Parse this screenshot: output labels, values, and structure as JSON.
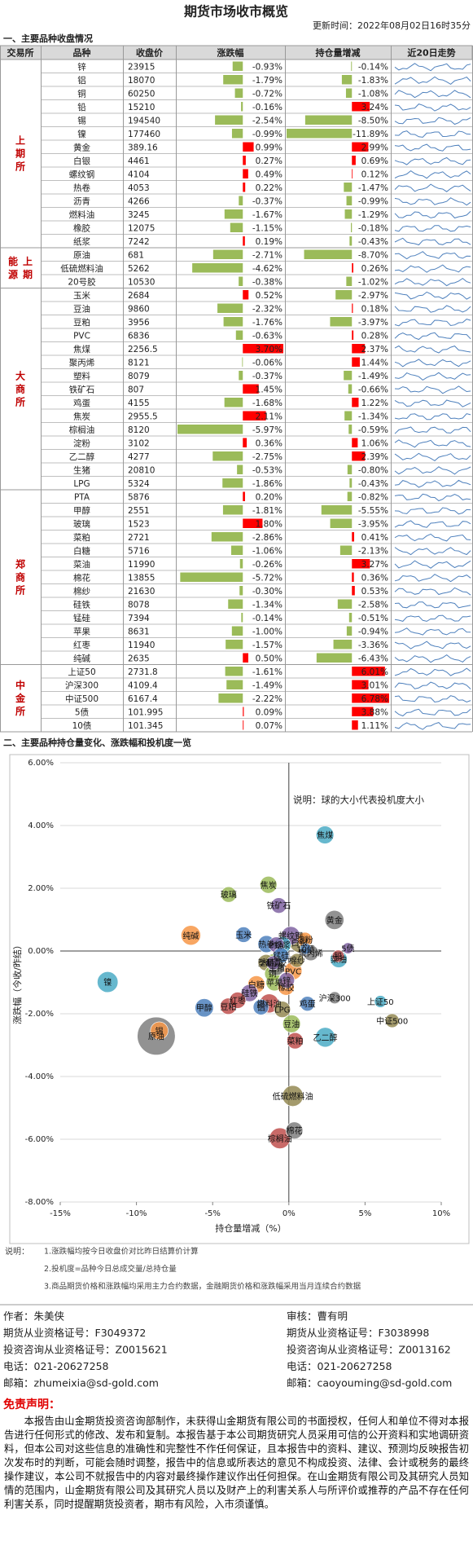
{
  "header": {
    "title": "期货市场收市概览",
    "updated": "更新时间：2022年08月02日16时35分"
  },
  "section1": "一、主要品种收盘情况",
  "table": {
    "columns": [
      "交易所",
      "品种",
      "收盘价",
      "涨跌幅",
      "持仓量增减",
      "近20日走势"
    ],
    "up_color": "#ff0000",
    "down_color": "#9bbb59",
    "groups": [
      {
        "exchange": "上期所",
        "rows": [
          [
            "锌",
            23915,
            -0.93,
            "-0.93%",
            -0.14,
            "-0.14%"
          ],
          [
            "铝",
            18070,
            -1.79,
            "-1.79%",
            -1.83,
            "-1.83%"
          ],
          [
            "铜",
            60250,
            -0.72,
            "-0.72%",
            -1.08,
            "-1.08%"
          ],
          [
            "铅",
            15210,
            -0.16,
            "-0.16%",
            3.24,
            "3.24%"
          ],
          [
            "锡",
            194540,
            -2.54,
            "-2.54%",
            -8.5,
            "-8.50%"
          ],
          [
            "镍",
            177460,
            -0.99,
            "-0.99%",
            -11.89,
            "-11.89%"
          ],
          [
            "黄金",
            389.16,
            0.99,
            "0.99%",
            2.99,
            "2.99%"
          ],
          [
            "白银",
            4461,
            0.27,
            "0.27%",
            0.69,
            "0.69%"
          ],
          [
            "螺纹钢",
            4104,
            0.49,
            "0.49%",
            0.12,
            "0.12%"
          ],
          [
            "热卷",
            4053,
            0.22,
            "0.22%",
            -1.47,
            "-1.47%"
          ],
          [
            "沥青",
            4266,
            -0.37,
            "-0.37%",
            -0.99,
            "-0.99%"
          ],
          [
            "燃料油",
            3245,
            -1.67,
            "-1.67%",
            -1.29,
            "-1.29%"
          ],
          [
            "橡胶",
            12075,
            -1.15,
            "-1.15%",
            -0.18,
            "-0.18%"
          ],
          [
            "纸浆",
            7242,
            0.19,
            "0.19%",
            -0.43,
            "-0.43%"
          ]
        ]
      },
      {
        "exchange": "上期能源",
        "rows": [
          [
            "原油",
            681,
            -2.71,
            "-2.71%",
            -8.7,
            "-8.70%"
          ],
          [
            "低硫燃料油",
            5262,
            -4.62,
            "-4.62%",
            0.26,
            "0.26%"
          ],
          [
            "20号胶",
            10530,
            -0.38,
            "-0.38%",
            -1.02,
            "-1.02%"
          ]
        ]
      },
      {
        "exchange": "大商所",
        "rows": [
          [
            "玉米",
            2684,
            0.52,
            "0.52%",
            -2.97,
            "-2.97%"
          ],
          [
            "豆油",
            9860,
            -2.32,
            "-2.32%",
            0.18,
            "0.18%"
          ],
          [
            "豆粕",
            3956,
            -1.76,
            "-1.76%",
            -3.97,
            "-3.97%"
          ],
          [
            "PVC",
            6836,
            -0.63,
            "-0.63%",
            0.28,
            "0.28%"
          ],
          [
            "焦煤",
            2256.5,
            3.7,
            "3.70%",
            2.37,
            "2.37%"
          ],
          [
            "聚丙烯",
            8121,
            -0.06,
            "-0.06%",
            1.44,
            "1.44%"
          ],
          [
            "塑料",
            8079,
            -0.37,
            "-0.37%",
            -1.49,
            "-1.49%"
          ],
          [
            "铁矿石",
            807,
            1.45,
            "1.45%",
            -0.66,
            "-0.66%"
          ],
          [
            "鸡蛋",
            4155,
            -1.68,
            "-1.68%",
            1.22,
            "1.22%"
          ],
          [
            "焦炭",
            2955.5,
            2.11,
            "2.11%",
            -1.34,
            "-1.34%"
          ],
          [
            "棕榈油",
            8120,
            -5.97,
            "-5.97%",
            -0.59,
            "-0.59%"
          ],
          [
            "淀粉",
            3102,
            0.36,
            "0.36%",
            1.06,
            "1.06%"
          ],
          [
            "乙二醇",
            4277,
            -2.75,
            "-2.75%",
            2.39,
            "2.39%"
          ],
          [
            "生猪",
            20810,
            -0.53,
            "-0.53%",
            -0.8,
            "-0.80%"
          ],
          [
            "LPG",
            5324,
            -1.86,
            "-1.86%",
            -0.43,
            "-0.43%"
          ]
        ]
      },
      {
        "exchange": "郑商所",
        "rows": [
          [
            "PTA",
            5876,
            0.2,
            "0.20%",
            -0.82,
            "-0.82%"
          ],
          [
            "甲醇",
            2551,
            -1.81,
            "-1.81%",
            -5.55,
            "-5.55%"
          ],
          [
            "玻璃",
            1523,
            1.8,
            "1.80%",
            -3.95,
            "-3.95%"
          ],
          [
            "菜粕",
            2721,
            -2.86,
            "-2.86%",
            0.41,
            "0.41%"
          ],
          [
            "白糖",
            5716,
            -1.06,
            "-1.06%",
            -2.13,
            "-2.13%"
          ],
          [
            "菜油",
            11990,
            -0.26,
            "-0.26%",
            3.27,
            "3.27%"
          ],
          [
            "棉花",
            13855,
            -5.72,
            "-5.72%",
            0.36,
            "0.36%"
          ],
          [
            "棉纱",
            21630,
            -0.3,
            "-0.30%",
            0.53,
            "0.53%"
          ],
          [
            "硅铁",
            8078,
            -1.34,
            "-1.34%",
            -2.58,
            "-2.58%"
          ],
          [
            "锰硅",
            7394,
            -0.14,
            "-0.14%",
            -0.51,
            "-0.51%"
          ],
          [
            "苹果",
            8631,
            -1.0,
            "-1.00%",
            -0.94,
            "-0.94%"
          ],
          [
            "红枣",
            11940,
            -1.57,
            "-1.57%",
            -3.36,
            "-3.36%"
          ],
          [
            "纯碱",
            2635,
            0.5,
            "0.50%",
            -6.43,
            "-6.43%"
          ]
        ]
      },
      {
        "exchange": "中金所",
        "rows": [
          [
            "上证50",
            2731.8,
            -1.61,
            "-1.61%",
            6.01,
            "6.01%"
          ],
          [
            "沪深300",
            4109.4,
            -1.49,
            "-1.49%",
            3.01,
            "3.01%"
          ],
          [
            "中证500",
            6167.4,
            -2.22,
            "-2.22%",
            6.78,
            "6.78%"
          ],
          [
            "5债",
            101.995,
            0.09,
            "0.09%",
            3.88,
            "3.88%"
          ],
          [
            "10债",
            101.345,
            0.07,
            "0.07%",
            1.11,
            "1.11%"
          ]
        ]
      }
    ]
  },
  "section2": "二、主要品种持仓量变化、涨跌幅和投机度一览",
  "chart_data": {
    "type": "scatter",
    "note": "说明：球的大小代表投机度大小",
    "x_label": "持仓量增减（%）",
    "y_label": "涨跌幅（今收/昨结）",
    "xlim": [
      -15,
      10
    ],
    "ylim": [
      -8,
      6
    ],
    "xticks": [
      {
        "value": -15,
        "label": "-15%"
      },
      {
        "value": -10,
        "label": "-10%"
      },
      {
        "value": -5,
        "label": "-5%"
      },
      {
        "value": 0,
        "label": "0%"
      },
      {
        "value": 5,
        "label": "5%"
      },
      {
        "value": 10,
        "label": "10%"
      }
    ],
    "yticks": [
      {
        "value": -8,
        "label": "-8.00%"
      },
      {
        "value": -6,
        "label": "-6.00%"
      },
      {
        "value": -4,
        "label": "-4.00%"
      },
      {
        "value": -2,
        "label": "-2.00%"
      },
      {
        "value": 0,
        "label": "0.00%"
      },
      {
        "value": 2,
        "label": "2.00%"
      },
      {
        "value": 4,
        "label": "4.00%"
      },
      {
        "value": 6,
        "label": "6.00%"
      }
    ],
    "colors": [
      "#8064a2",
      "#4f81bd",
      "#9bbb59",
      "#c0504d",
      "#f79646",
      "#4bacc6",
      "#7f7f7f",
      "#948a54"
    ],
    "names": [
      "锌",
      "铝",
      "铜",
      "铅",
      "锡",
      "镍",
      "黄金",
      "白银",
      "螺纹钢",
      "热卷",
      "沥青",
      "燃料油",
      "橡胶",
      "纸浆",
      "原油",
      "低硫燃料油",
      "20号胶",
      "玉米",
      "豆油",
      "豆粕",
      "PVC",
      "焦煤",
      "聚丙烯",
      "塑料",
      "铁矿石",
      "鸡蛋",
      "焦炭",
      "棕榈油",
      "淀粉",
      "乙二醇",
      "生猪",
      "LPG",
      "PTA",
      "甲醇",
      "玻璃",
      "菜粕",
      "白糖",
      "菜油",
      "棉花",
      "棉纱",
      "硅铁",
      "锰硅",
      "苹果",
      "红枣",
      "纯碱",
      "上证50",
      "沪深300",
      "中证500",
      "5债",
      "10债"
    ],
    "x": [
      -0.14,
      -1.83,
      -1.08,
      3.24,
      -8.5,
      -11.89,
      2.99,
      0.69,
      0.12,
      -1.47,
      -0.99,
      -1.29,
      -0.18,
      -0.43,
      -8.7,
      0.26,
      -1.02,
      -2.97,
      0.18,
      -3.97,
      0.28,
      2.37,
      1.44,
      -1.49,
      -0.66,
      1.22,
      -1.34,
      -0.59,
      1.06,
      2.39,
      -0.8,
      -0.43,
      -0.82,
      -5.55,
      -3.95,
      0.41,
      -2.13,
      3.27,
      0.36,
      0.53,
      -2.58,
      -0.51,
      -0.94,
      -3.36,
      -6.43,
      6.01,
      3.01,
      6.78,
      3.88,
      1.11
    ],
    "y": [
      -0.93,
      -1.79,
      -0.72,
      -0.16,
      -2.54,
      -0.99,
      0.99,
      0.27,
      0.49,
      0.22,
      -0.37,
      -1.67,
      -1.15,
      0.19,
      -2.71,
      -4.62,
      -0.38,
      0.52,
      -2.32,
      -1.76,
      -0.63,
      3.7,
      -0.06,
      -0.37,
      1.45,
      -1.68,
      2.11,
      -5.97,
      0.36,
      -2.75,
      -0.53,
      -1.86,
      0.2,
      -1.81,
      1.8,
      -2.86,
      -1.06,
      -0.26,
      -5.72,
      -0.3,
      -1.34,
      -0.14,
      -1.0,
      -1.57,
      0.5,
      -1.61,
      -1.49,
      -2.22,
      0.09,
      0.07
    ],
    "sizes": [
      1,
      1,
      1,
      0.6,
      1.3,
      1.8,
      1.5,
      1.6,
      1.4,
      1.2,
      1.3,
      1.5,
      1.1,
      1.2,
      6,
      1.8,
      0.8,
      1,
      1.3,
      1.1,
      1.3,
      1.3,
      1,
      1.1,
      1,
      0.9,
      1.2,
      1.8,
      0.9,
      1.6,
      1,
      1.1,
      1,
      1.4,
      1,
      1.1,
      1.2,
      1.2,
      1.2,
      0.8,
      1.2,
      1,
      1.2,
      1.1,
      1.6,
      0.6,
      0.6,
      0.8,
      0.5,
      0.5
    ]
  },
  "notes": {
    "title": "说明：",
    "items": [
      "1.涨跌幅均按今日收盘价对比昨日结算价计算",
      "2.投机度=品种今日总成交量/总持仓量",
      "3.商品期货价格和涨跌幅均采用主力合约数据，金融期货价格和涨跌幅采用当月连续合约数据"
    ]
  },
  "credits": [
    [
      "作者：朱美侠",
      "审核：曹有明"
    ],
    [
      "期货从业资格证号：F3049372",
      "期货从业资格证号：F3038998"
    ],
    [
      "投资咨询从业资格证号：Z0015621",
      "投资咨询从业资格证号：Z0013162"
    ],
    [
      "电话：021-20627258",
      "电话：021-20627258"
    ],
    [
      "邮箱：zhumeixia@sd-gold.com",
      "邮箱：caoyouming@sd-gold.com"
    ]
  ],
  "disclaimer": {
    "title": "免责声明：",
    "text": "本报告由山金期货投资咨询部制作，未获得山金期货有限公司的书面授权，任何人和单位不得对本报告进行任何形式的修改、发布和复制。本报告基于本公司期货研究人员采用可信的公开资料和实地调研资料，但本公司对这些信息的准确性和完整性不作任何保证，且本报告中的资料、建议、预测均反映报告初次发布时的判断，可能会随时调整，报告中的信息或所表达的意见不构成投资、法律、会计或税务的最终操作建议，本公司不就报告中的内容对最终操作建议作出任何担保。在山金期货有限公司及其研究人员知情的范围内，山金期货有限公司及其研究人员以及财产上的利害关系人与所评价或推荐的产品不存在任何利害关系，同时提醒期货投资者，期市有风险，入市须谨慎。"
  }
}
